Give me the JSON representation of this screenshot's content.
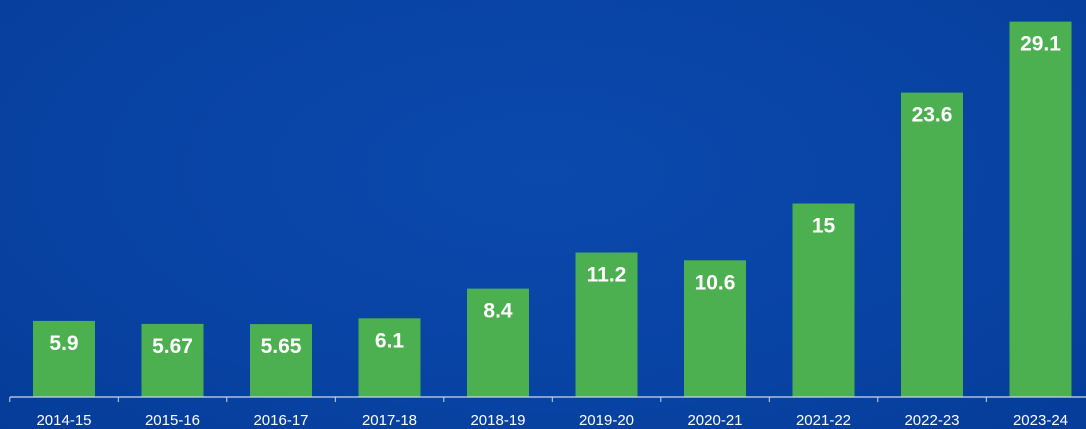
{
  "chart_data": {
    "type": "bar",
    "categories": [
      "2014-15",
      "2015-16",
      "2016-17",
      "2017-18",
      "2018-19",
      "2019-20",
      "2020-21",
      "2021-22",
      "2022-23",
      "2023-24"
    ],
    "values": [
      5.9,
      5.67,
      5.65,
      6.1,
      8.4,
      11.2,
      10.6,
      15,
      23.6,
      29.1
    ],
    "value_labels": [
      "5.9",
      "5.67",
      "5.65",
      "6.1",
      "8.4",
      "11.2",
      "10.6",
      "15",
      "23.6",
      "29.1"
    ],
    "title": "",
    "xlabel": "",
    "ylabel": "",
    "ylim": [
      0,
      30
    ],
    "grid": false,
    "legend": "none",
    "colors": {
      "background": "#0a45a6",
      "bar": "#4caf50",
      "axis": "#cfd8ee",
      "text": "#ffffff"
    }
  }
}
